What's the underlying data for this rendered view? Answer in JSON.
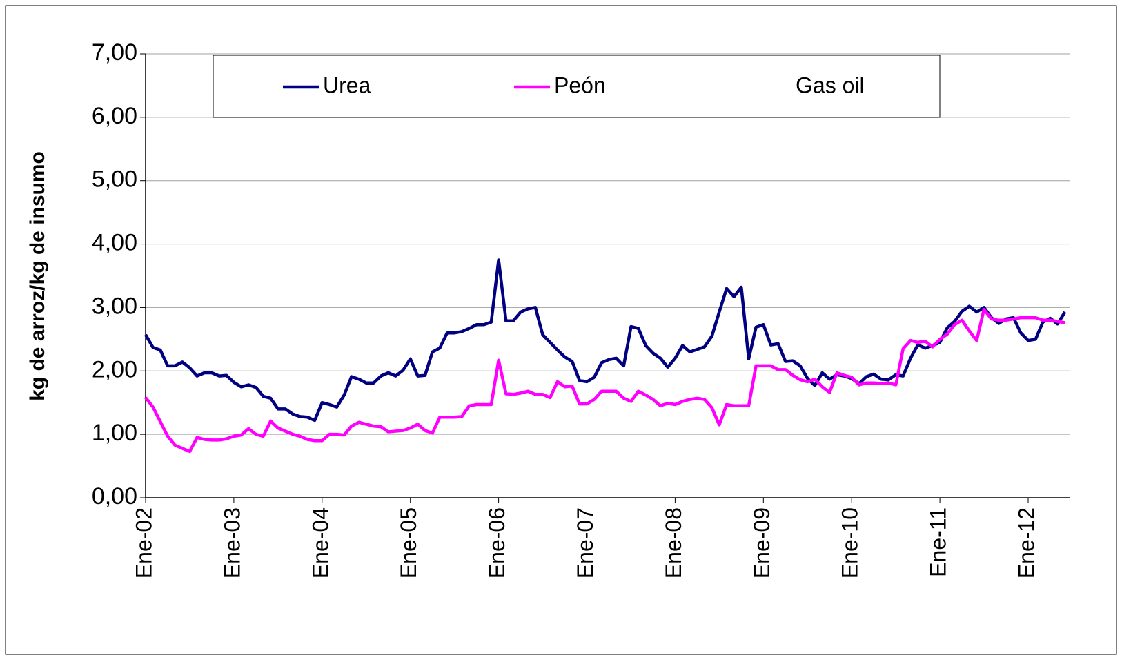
{
  "chart_data": {
    "type": "line",
    "ylabel": "kg de arroz/kg de insumo",
    "categories": [
      "Ene-02",
      null,
      null,
      null,
      null,
      null,
      null,
      null,
      null,
      null,
      null,
      null,
      "Ene-03",
      null,
      null,
      null,
      null,
      null,
      null,
      null,
      null,
      null,
      null,
      null,
      "Ene-04",
      null,
      null,
      null,
      null,
      null,
      null,
      null,
      null,
      null,
      null,
      null,
      "Ene-05",
      null,
      null,
      null,
      null,
      null,
      null,
      null,
      null,
      null,
      null,
      null,
      "Ene-06",
      null,
      null,
      null,
      null,
      null,
      null,
      null,
      null,
      null,
      null,
      null,
      "Ene-07",
      null,
      null,
      null,
      null,
      null,
      null,
      null,
      null,
      null,
      null,
      null,
      "Ene-08",
      null,
      null,
      null,
      null,
      null,
      null,
      null,
      null,
      null,
      null,
      null,
      "Ene-09",
      null,
      null,
      null,
      null,
      null,
      null,
      null,
      null,
      null,
      null,
      null,
      "Ene-10",
      null,
      null,
      null,
      null,
      null,
      null,
      null,
      null,
      null,
      null,
      null,
      "Ene-11",
      null,
      null,
      null,
      null,
      null,
      null,
      null,
      null,
      null,
      null,
      null,
      "Ene-12",
      null,
      null,
      null,
      null,
      null
    ],
    "series": [
      {
        "name": "Urea",
        "color": "#000080",
        "values": [
          2.57,
          2.37,
          2.33,
          2.08,
          2.08,
          2.14,
          2.05,
          1.92,
          1.97,
          1.97,
          1.92,
          1.93,
          1.82,
          1.75,
          1.78,
          1.74,
          1.6,
          1.57,
          1.4,
          1.4,
          1.32,
          1.28,
          1.27,
          1.22,
          1.5,
          1.47,
          1.43,
          1.62,
          1.91,
          1.87,
          1.81,
          1.81,
          1.92,
          1.97,
          1.92,
          2.01,
          2.19,
          1.92,
          1.93,
          2.3,
          2.36,
          2.6,
          2.6,
          2.62,
          2.67,
          2.73,
          2.73,
          2.77,
          3.75,
          2.79,
          2.79,
          2.93,
          2.98,
          3.0,
          2.57,
          2.45,
          2.33,
          2.22,
          2.15,
          1.85,
          1.83,
          1.9,
          2.13,
          2.18,
          2.2,
          2.08,
          2.7,
          2.67,
          2.4,
          2.28,
          2.2,
          2.06,
          2.2,
          2.4,
          2.3,
          2.34,
          2.38,
          2.55,
          2.93,
          3.3,
          3.17,
          3.32,
          2.19,
          2.69,
          2.73,
          2.41,
          2.43,
          2.15,
          2.16,
          2.08,
          1.88,
          1.77,
          1.97,
          1.87,
          1.94,
          1.92,
          1.88,
          1.8,
          1.91,
          1.95,
          1.87,
          1.86,
          1.94,
          1.92,
          2.2,
          2.41,
          2.36,
          2.4,
          2.45,
          2.68,
          2.78,
          2.94,
          3.02,
          2.93,
          3.0,
          2.84,
          2.75,
          2.82,
          2.84,
          2.6,
          2.48,
          2.5,
          2.77,
          2.83,
          2.74,
          2.93
        ]
      },
      {
        "name": "Peón",
        "color": "#ff00ff",
        "values": [
          1.58,
          1.43,
          1.2,
          0.97,
          0.83,
          0.78,
          0.73,
          0.95,
          0.92,
          0.91,
          0.91,
          0.93,
          0.97,
          0.99,
          1.09,
          1.0,
          0.97,
          1.21,
          1.1,
          1.05,
          1.0,
          0.97,
          0.92,
          0.9,
          0.9,
          1.0,
          1.0,
          0.99,
          1.13,
          1.19,
          1.16,
          1.13,
          1.12,
          1.04,
          1.05,
          1.06,
          1.1,
          1.16,
          1.06,
          1.02,
          1.27,
          1.27,
          1.27,
          1.28,
          1.45,
          1.47,
          1.47,
          1.47,
          2.17,
          1.64,
          1.63,
          1.65,
          1.68,
          1.63,
          1.63,
          1.58,
          1.83,
          1.75,
          1.76,
          1.48,
          1.48,
          1.55,
          1.68,
          1.68,
          1.68,
          1.57,
          1.52,
          1.68,
          1.62,
          1.55,
          1.45,
          1.49,
          1.47,
          1.52,
          1.55,
          1.57,
          1.55,
          1.42,
          1.15,
          1.47,
          1.45,
          1.45,
          1.45,
          2.08,
          2.08,
          2.08,
          2.02,
          2.02,
          1.93,
          1.86,
          1.83,
          1.87,
          1.75,
          1.66,
          1.97,
          1.93,
          1.9,
          1.78,
          1.81,
          1.81,
          1.8,
          1.81,
          1.78,
          2.35,
          2.48,
          2.45,
          2.47,
          2.38,
          2.5,
          2.58,
          2.73,
          2.8,
          2.63,
          2.48,
          2.97,
          2.82,
          2.8,
          2.8,
          2.82,
          2.84,
          2.84,
          2.84,
          2.8,
          2.8,
          2.78,
          2.76
        ]
      },
      {
        "name": "Gas oil",
        "color": "#ffffff",
        "values": [
          null,
          null,
          null,
          null,
          null,
          null,
          null,
          null,
          null,
          null,
          null,
          null,
          null,
          null,
          null,
          null,
          null,
          null,
          null,
          null,
          null,
          null,
          null,
          null,
          null,
          null,
          null,
          null,
          null,
          null,
          null,
          null,
          null,
          null,
          null,
          null,
          null,
          null,
          null,
          null,
          null,
          null,
          null,
          null,
          null,
          null,
          null,
          null,
          null,
          null,
          null,
          null,
          null,
          null,
          null,
          null,
          null,
          null,
          null,
          null,
          null,
          null,
          null,
          null,
          null,
          null,
          null,
          null,
          null,
          null,
          null,
          null,
          null,
          null,
          null,
          null,
          null,
          null,
          null,
          null,
          null,
          null,
          null,
          null,
          null,
          null,
          null,
          null,
          null,
          null,
          null,
          null,
          null,
          null,
          null,
          null,
          null,
          null,
          null,
          null,
          null,
          null,
          null,
          null,
          null,
          null,
          null,
          null,
          null,
          null,
          null,
          null,
          null,
          null,
          null,
          null,
          null,
          null,
          null,
          null,
          null,
          null,
          null,
          null,
          null,
          null
        ]
      }
    ],
    "ylim": [
      0,
      7
    ],
    "yticks": [
      {
        "value": 0,
        "label": "0,00"
      },
      {
        "value": 1,
        "label": "1,00"
      },
      {
        "value": 2,
        "label": "2,00"
      },
      {
        "value": 3,
        "label": "3,00"
      },
      {
        "value": 4,
        "label": "4,00"
      },
      {
        "value": 5,
        "label": "5,00"
      },
      {
        "value": 6,
        "label": "6,00"
      },
      {
        "value": 7,
        "label": "7,00"
      }
    ],
    "grid": true,
    "legend": "top"
  }
}
